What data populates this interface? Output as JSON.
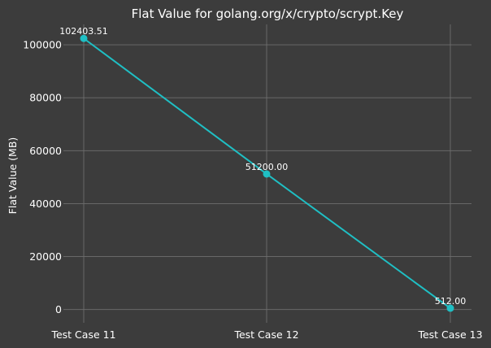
{
  "chart_data": {
    "type": "line",
    "title": "Flat Value for golang.org/x/crypto/scrypt.Key",
    "xlabel": "",
    "ylabel": "Flat Value (MB)",
    "categories": [
      "Test Case 11",
      "Test Case 12",
      "Test Case 13"
    ],
    "values": [
      102403.51,
      51200.0,
      512.0
    ],
    "data_labels": [
      "102403.51",
      "51200.00",
      "512.00"
    ],
    "ylim": [
      -5000,
      107700
    ],
    "yticks": [
      0,
      20000,
      40000,
      60000,
      80000,
      100000
    ],
    "ytick_labels": [
      "0",
      "20000",
      "40000",
      "60000",
      "80000",
      "100000"
    ],
    "grid": true,
    "colors": {
      "background": "#3c3c3c",
      "line": "#1fbfc4",
      "marker": "#1fbfc4",
      "grid": "#6e6e6e",
      "text": "#ffffff"
    }
  }
}
